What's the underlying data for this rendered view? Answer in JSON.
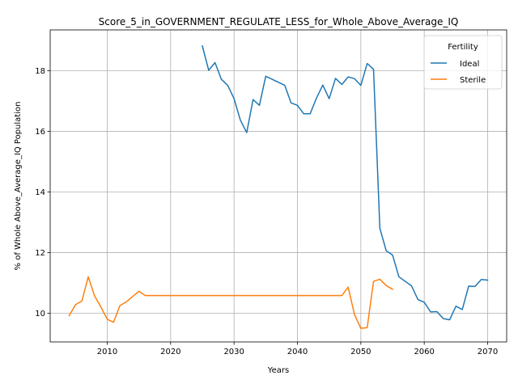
{
  "chart_data": {
    "type": "line",
    "title": "Score_5_in_GOVERNMENT_REGULATE_LESS_for_Whole_Above_Average_IQ",
    "xlabel": "Years",
    "ylabel": "% of Whole Above_Average_IQ Population",
    "xlim": [
      2001,
      2073
    ],
    "ylim": [
      9.05,
      19.35
    ],
    "xticks": [
      2010,
      2020,
      2030,
      2040,
      2050,
      2060,
      2070
    ],
    "yticks": [
      10,
      12,
      14,
      16,
      18
    ],
    "grid": true,
    "legend": {
      "title": "Fertility",
      "placement": "top-right"
    },
    "series": [
      {
        "name": "Ideal",
        "color": "#1f77b4",
        "x": [
          2025,
          2026,
          2027,
          2028,
          2029,
          2030,
          2031,
          2032,
          2033,
          2034,
          2035,
          2036,
          2037,
          2038,
          2039,
          2040,
          2041,
          2042,
          2043,
          2044,
          2045,
          2046,
          2047,
          2048,
          2049,
          2050,
          2051,
          2052,
          2053,
          2054,
          2055,
          2056,
          2057,
          2058,
          2059,
          2060,
          2061,
          2062,
          2063,
          2064,
          2065,
          2066,
          2067,
          2068,
          2069,
          2070
        ],
        "y": [
          18.82,
          18.02,
          18.27,
          17.72,
          17.52,
          17.08,
          16.37,
          15.96,
          17.05,
          16.86,
          17.82,
          17.72,
          17.62,
          17.52,
          16.94,
          16.86,
          16.58,
          16.58,
          17.1,
          17.53,
          17.08,
          17.75,
          17.55,
          17.8,
          17.74,
          17.52,
          18.24,
          18.05,
          12.8,
          12.06,
          11.92,
          11.2,
          11.05,
          10.9,
          10.45,
          10.36,
          10.04,
          10.05,
          9.82,
          9.78,
          10.23,
          10.12,
          10.89,
          10.88,
          11.11,
          11.09
        ]
      },
      {
        "name": "Sterile",
        "color": "#ff7f0e",
        "x": [
          2004,
          2005,
          2006,
          2007,
          2008,
          2009,
          2010,
          2011,
          2012,
          2013,
          2014,
          2015,
          2016,
          2017,
          2020,
          2030,
          2040,
          2047,
          2048,
          2049,
          2050,
          2051,
          2052,
          2053,
          2054,
          2055
        ],
        "y": [
          9.92,
          10.28,
          10.4,
          11.2,
          10.57,
          10.2,
          9.8,
          9.7,
          10.25,
          10.37,
          10.55,
          10.72,
          10.58,
          10.58,
          10.58,
          10.58,
          10.58,
          10.58,
          10.86,
          9.95,
          9.5,
          9.52,
          11.05,
          11.12,
          10.91,
          10.79
        ]
      }
    ]
  }
}
